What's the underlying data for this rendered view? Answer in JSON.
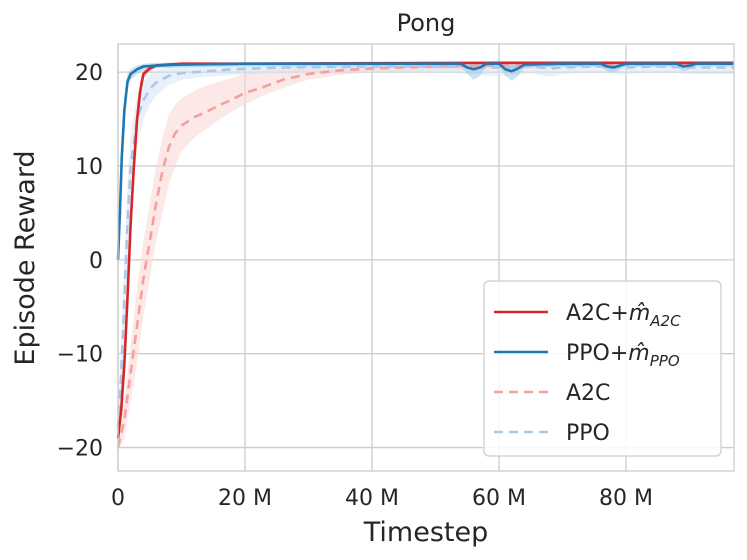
{
  "chart_data": {
    "type": "line",
    "title": "Pong",
    "xlabel": "Timestep",
    "ylabel": "Episode Reward",
    "xlim": [
      0,
      97
    ],
    "ylim": [
      -22.5,
      23
    ],
    "x_ticks": [
      {
        "value": 0,
        "label": "0"
      },
      {
        "value": 20,
        "label": "20 M"
      },
      {
        "value": 40,
        "label": "40 M"
      },
      {
        "value": 60,
        "label": "60 M"
      },
      {
        "value": 80,
        "label": "80 M"
      }
    ],
    "y_ticks": [
      {
        "value": 20,
        "label": "20"
      },
      {
        "value": 10,
        "label": "10"
      },
      {
        "value": 0,
        "label": "0"
      },
      {
        "value": -10,
        "label": "−10"
      },
      {
        "value": -20,
        "label": "−20"
      }
    ],
    "grid": true,
    "legend_position": "bottom-right",
    "series": [
      {
        "name": "A2C+m̂A2C",
        "legend_main": "A2C+",
        "legend_math": "m̂",
        "legend_sub": "A2C",
        "color": "#d62728",
        "dash": false,
        "band_color": "#f4a6a6",
        "x": [
          0,
          0.5,
          1,
          1.5,
          2,
          2.5,
          3,
          3.5,
          4,
          5,
          6,
          8,
          10,
          20,
          40,
          60,
          80,
          97
        ],
        "y": [
          -19,
          -16,
          -11,
          -4,
          4,
          10,
          15,
          18,
          19.8,
          20.4,
          20.7,
          20.8,
          20.9,
          20.9,
          20.95,
          21,
          21,
          21
        ],
        "band": [
          [
            -20,
            -18
          ],
          [
            -17,
            -15
          ],
          [
            -12,
            -10
          ],
          [
            -5,
            -3
          ],
          [
            3,
            5
          ],
          [
            9,
            11
          ],
          [
            14,
            16
          ],
          [
            17,
            19
          ],
          [
            19.3,
            20.2
          ],
          [
            20.1,
            20.7
          ],
          [
            20.5,
            20.9
          ],
          [
            20.6,
            21
          ],
          [
            20.7,
            21
          ],
          [
            20.7,
            21
          ],
          [
            20.8,
            21
          ],
          [
            20.9,
            21
          ],
          [
            20.9,
            21
          ],
          [
            20.9,
            21
          ]
        ]
      },
      {
        "name": "PPO+m̂PPO",
        "legend_main": "PPO+",
        "legend_math": "m̂",
        "legend_sub": "PPO",
        "color": "#1f77b4",
        "dash": false,
        "band_color": "#9ecae1",
        "x": [
          0,
          0.3,
          0.6,
          1,
          1.5,
          2,
          3,
          4,
          6,
          10,
          20,
          40,
          54,
          55,
          56,
          57,
          58,
          60,
          61,
          62,
          63,
          64,
          70,
          76,
          77,
          78,
          79,
          80,
          88,
          89,
          90,
          91,
          97
        ],
        "y": [
          0,
          5,
          11,
          16,
          19,
          19.8,
          20.3,
          20.6,
          20.7,
          20.8,
          20.9,
          20.9,
          20.9,
          20.5,
          20.3,
          20.5,
          20.9,
          20.9,
          20.3,
          20.1,
          20.4,
          20.8,
          20.9,
          20.9,
          20.6,
          20.5,
          20.7,
          20.9,
          20.9,
          20.6,
          20.7,
          20.9,
          20.9
        ],
        "band": [
          [
            -2,
            2
          ],
          [
            3,
            7
          ],
          [
            9,
            13
          ],
          [
            15,
            17.5
          ],
          [
            18.3,
            19.8
          ],
          [
            19.2,
            20.3
          ],
          [
            19.8,
            20.7
          ],
          [
            20.2,
            20.9
          ],
          [
            20.4,
            21
          ],
          [
            20.5,
            21
          ],
          [
            20.6,
            21
          ],
          [
            20.6,
            21
          ],
          [
            20.6,
            21
          ],
          [
            19.8,
            21
          ],
          [
            19.2,
            21
          ],
          [
            19.6,
            21
          ],
          [
            20.6,
            21
          ],
          [
            20.6,
            21
          ],
          [
            19.6,
            21
          ],
          [
            19.1,
            21
          ],
          [
            19.6,
            21
          ],
          [
            20.5,
            21
          ],
          [
            20.6,
            21
          ],
          [
            20.6,
            21
          ],
          [
            20.1,
            21
          ],
          [
            19.9,
            21
          ],
          [
            20.3,
            21
          ],
          [
            20.6,
            21
          ],
          [
            20.6,
            21
          ],
          [
            20.1,
            21
          ],
          [
            20.3,
            21
          ],
          [
            20.6,
            21
          ],
          [
            20.6,
            21
          ]
        ]
      },
      {
        "name": "A2C",
        "legend_main": "A2C",
        "legend_math": "",
        "legend_sub": "",
        "color": "#f4a09c",
        "dash": true,
        "band_color": "#fcd5d5",
        "x": [
          0,
          1,
          2,
          3,
          4,
          5,
          6,
          7,
          8,
          9,
          10,
          12,
          14,
          16,
          18,
          20,
          22,
          24,
          26,
          28,
          30,
          35,
          40,
          45,
          50,
          60,
          70,
          80,
          90,
          97
        ],
        "y": [
          -20,
          -17,
          -12,
          -7,
          -2,
          2,
          6,
          9.5,
          12,
          13.5,
          14.3,
          15.2,
          15.8,
          16.5,
          17.1,
          17.8,
          18.2,
          18.7,
          19.2,
          19.5,
          19.8,
          20.2,
          20.4,
          20.5,
          20.6,
          20.7,
          20.8,
          20.8,
          20.9,
          20.9
        ],
        "band": [
          [
            -20.5,
            -19.2
          ],
          [
            -19,
            -15
          ],
          [
            -15,
            -9
          ],
          [
            -11,
            -3
          ],
          [
            -6,
            2
          ],
          [
            -2,
            6
          ],
          [
            2,
            10
          ],
          [
            5,
            13
          ],
          [
            8,
            15.5
          ],
          [
            10,
            16.5
          ],
          [
            11.5,
            17.2
          ],
          [
            13,
            18
          ],
          [
            14,
            18.6
          ],
          [
            15,
            19
          ],
          [
            15.8,
            19.4
          ],
          [
            16.6,
            19.8
          ],
          [
            17.2,
            20.1
          ],
          [
            17.8,
            20.3
          ],
          [
            18.3,
            20.5
          ],
          [
            18.8,
            20.6
          ],
          [
            19.2,
            20.7
          ],
          [
            19.7,
            20.8
          ],
          [
            20,
            20.9
          ],
          [
            20.1,
            20.9
          ],
          [
            20.2,
            21
          ],
          [
            20.3,
            21
          ],
          [
            20.4,
            21
          ],
          [
            20.5,
            21
          ],
          [
            20.6,
            21
          ],
          [
            20.6,
            21
          ]
        ]
      },
      {
        "name": "PPO",
        "legend_main": "PPO",
        "legend_math": "",
        "legend_sub": "",
        "color": "#aec7e8",
        "dash": true,
        "band_color": "#d6e4f5",
        "x": [
          0,
          0.5,
          1,
          1.5,
          2,
          3,
          4,
          5,
          6,
          8,
          10,
          14,
          18,
          22,
          26,
          30,
          40,
          50,
          60,
          65,
          68,
          70,
          75,
          80,
          85,
          90,
          95,
          97
        ],
        "y": [
          -18,
          -12,
          -4,
          4,
          10,
          15,
          17,
          18.2,
          18.9,
          19.6,
          19.9,
          20.1,
          20.3,
          20.4,
          20.5,
          20.55,
          20.6,
          20.6,
          20.5,
          20.6,
          20.4,
          20.5,
          20.6,
          20.5,
          20.6,
          20.5,
          20.5,
          20.5
        ],
        "band": [
          [
            -20,
            -16
          ],
          [
            -15,
            -9
          ],
          [
            -8,
            0
          ],
          [
            0,
            8
          ],
          [
            6,
            13.5
          ],
          [
            12,
            17.5
          ],
          [
            15,
            19
          ],
          [
            16.5,
            19.7
          ],
          [
            17.5,
            20.2
          ],
          [
            18.6,
            20.5
          ],
          [
            19.2,
            20.7
          ],
          [
            19.5,
            20.8
          ],
          [
            19.7,
            20.9
          ],
          [
            19.8,
            20.9
          ],
          [
            19.9,
            21
          ],
          [
            20,
            21
          ],
          [
            20,
            21
          ],
          [
            20,
            21
          ],
          [
            19.6,
            21
          ],
          [
            19.9,
            21
          ],
          [
            19.5,
            21
          ],
          [
            19.8,
            21
          ],
          [
            20,
            21
          ],
          [
            19.8,
            21
          ],
          [
            20,
            21
          ],
          [
            19.8,
            21
          ],
          [
            19.8,
            21
          ],
          [
            19.8,
            21
          ]
        ]
      }
    ]
  }
}
